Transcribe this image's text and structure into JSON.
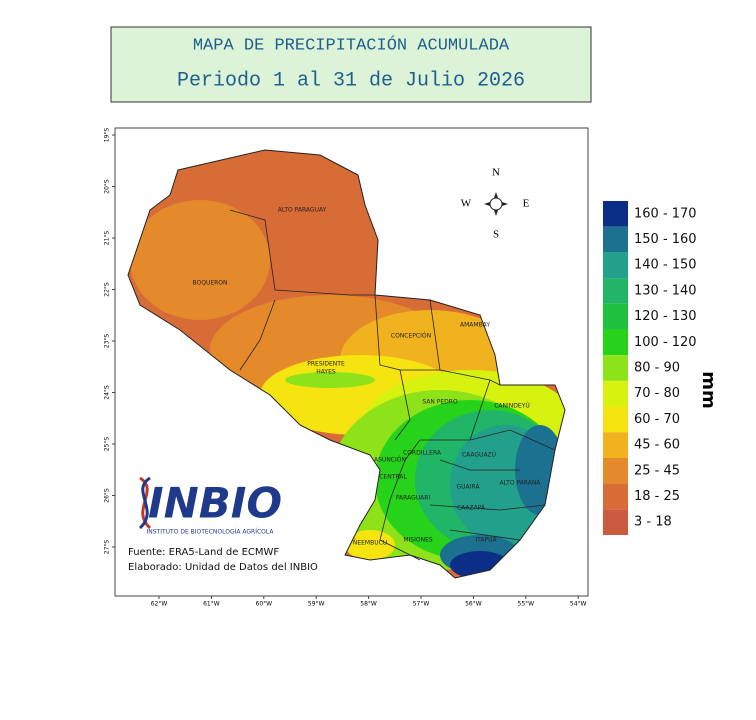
{
  "header": {
    "title": "MAPA DE PRECIPITACIÓN ACUMULADA",
    "subtitle": "Periodo 1 al 31 de Julio 2026"
  },
  "map": {
    "lat_ticks": [
      "19°S",
      "20°S",
      "21°S",
      "22°S",
      "23°S",
      "24°S",
      "25°S",
      "26°S",
      "27°S"
    ],
    "lon_ticks": [
      "62°W",
      "61°W",
      "60°W",
      "59°W",
      "58°W",
      "57°W",
      "56°W",
      "55°W",
      "54°W"
    ],
    "departments": [
      {
        "lines": [
          "ALTO PARAGUAY"
        ]
      },
      {
        "lines": [
          "BOQUERON"
        ]
      },
      {
        "lines": [
          "PRESIDENTE",
          "HAYES"
        ]
      },
      {
        "lines": [
          "CONCEPCIÓN"
        ]
      },
      {
        "lines": [
          "AMAMBAY"
        ]
      },
      {
        "lines": [
          "SAN PEDRO"
        ]
      },
      {
        "lines": [
          "CANINDEYÚ"
        ]
      },
      {
        "lines": [
          "CORDILLERA"
        ]
      },
      {
        "lines": [
          "CAAGUAZÚ"
        ]
      },
      {
        "lines": [
          "ASUNCIÓN"
        ]
      },
      {
        "lines": [
          "CENTRAL"
        ]
      },
      {
        "lines": [
          "GUAIRÁ"
        ]
      },
      {
        "lines": [
          "ALTO PARANÁ"
        ]
      },
      {
        "lines": [
          "PARAGUARI"
        ]
      },
      {
        "lines": [
          "CAAZAPÁ"
        ]
      },
      {
        "lines": [
          "ÑEEMBUCU"
        ]
      },
      {
        "lines": [
          "MISIONES"
        ]
      },
      {
        "lines": [
          "ITAPÚA"
        ]
      }
    ],
    "compass": {
      "n": "N",
      "s": "S",
      "e": "E",
      "w": "W"
    },
    "logo": {
      "name": "INBIO",
      "full_name": "INSTITUTO DE BIOTECNOLOGÍA AGRÍCOLA"
    },
    "credits": [
      "Fuente: ERA5-Land de ECMWF",
      "Elaborado: Unidad de Datos del INBIO"
    ]
  },
  "legend": {
    "unit": "mm",
    "items": [
      {
        "label": "160 - 170",
        "color": "#0b2f86"
      },
      {
        "label": "150 - 160",
        "color": "#1c7190"
      },
      {
        "label": "140 - 150",
        "color": "#22a08c"
      },
      {
        "label": "130 - 140",
        "color": "#21b567"
      },
      {
        "label": "120 - 130",
        "color": "#1fc23f"
      },
      {
        "label": "100 - 120",
        "color": "#27d21b"
      },
      {
        "label": "80 - 90",
        "color": "#8ee21a"
      },
      {
        "label": "70 - 80",
        "color": "#d8f20f"
      },
      {
        "label": "60 - 70",
        "color": "#f6e411"
      },
      {
        "label": "45 - 60",
        "color": "#f0b21f"
      },
      {
        "label": "25 - 45",
        "color": "#e48a2b"
      },
      {
        "label": "18 - 25",
        "color": "#d86c36"
      },
      {
        "label": "3 - 18",
        "color": "#cc5a3e"
      }
    ]
  }
}
